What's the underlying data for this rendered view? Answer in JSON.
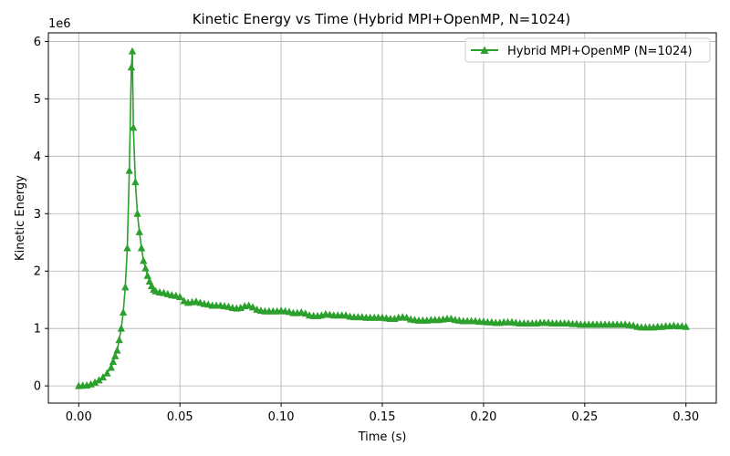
{
  "chart_data": {
    "type": "line",
    "title": "Kinetic Energy vs Time (Hybrid MPI+OpenMP, N=1024)",
    "xlabel": "Time (s)",
    "ylabel": "Kinetic Energy",
    "y_scale_label": "1e6",
    "xlim": [
      -0.015,
      0.315
    ],
    "ylim": [
      -0.3,
      6.15
    ],
    "x_ticks": [
      0.0,
      0.05,
      0.1,
      0.15,
      0.2,
      0.25,
      0.3
    ],
    "x_tick_labels": [
      "0.00",
      "0.05",
      "0.10",
      "0.15",
      "0.20",
      "0.25",
      "0.30"
    ],
    "y_ticks": [
      0,
      1,
      2,
      3,
      4,
      5,
      6
    ],
    "y_tick_labels": [
      "0",
      "1",
      "2",
      "3",
      "4",
      "5",
      "6"
    ],
    "grid": true,
    "legend_position": "top-right",
    "color": "#2ca02c",
    "marker": "triangle-up",
    "series": [
      {
        "name": "Hybrid MPI+OpenMP (N=1024)",
        "points": [
          [
            0.0,
            0.0
          ],
          [
            0.002,
            0.005
          ],
          [
            0.004,
            0.01
          ],
          [
            0.006,
            0.03
          ],
          [
            0.008,
            0.06
          ],
          [
            0.01,
            0.1
          ],
          [
            0.012,
            0.15
          ],
          [
            0.014,
            0.22
          ],
          [
            0.016,
            0.32
          ],
          [
            0.017,
            0.42
          ],
          [
            0.018,
            0.52
          ],
          [
            0.019,
            0.62
          ],
          [
            0.02,
            0.8
          ],
          [
            0.021,
            1.0
          ],
          [
            0.022,
            1.28
          ],
          [
            0.023,
            1.72
          ],
          [
            0.024,
            2.4
          ],
          [
            0.025,
            3.75
          ],
          [
            0.026,
            5.55
          ],
          [
            0.0265,
            5.83
          ],
          [
            0.027,
            4.5
          ],
          [
            0.028,
            3.55
          ],
          [
            0.029,
            3.0
          ],
          [
            0.03,
            2.68
          ],
          [
            0.031,
            2.4
          ],
          [
            0.032,
            2.18
          ],
          [
            0.033,
            2.05
          ],
          [
            0.034,
            1.92
          ],
          [
            0.035,
            1.82
          ],
          [
            0.036,
            1.74
          ],
          [
            0.037,
            1.68
          ],
          [
            0.038,
            1.65
          ],
          [
            0.04,
            1.63
          ],
          [
            0.042,
            1.62
          ],
          [
            0.044,
            1.6
          ],
          [
            0.046,
            1.58
          ],
          [
            0.048,
            1.57
          ],
          [
            0.05,
            1.55
          ],
          [
            0.052,
            1.48
          ],
          [
            0.054,
            1.45
          ],
          [
            0.056,
            1.46
          ],
          [
            0.058,
            1.47
          ],
          [
            0.06,
            1.45
          ],
          [
            0.062,
            1.43
          ],
          [
            0.064,
            1.42
          ],
          [
            0.066,
            1.4
          ],
          [
            0.068,
            1.4
          ],
          [
            0.07,
            1.4
          ],
          [
            0.072,
            1.39
          ],
          [
            0.074,
            1.38
          ],
          [
            0.076,
            1.36
          ],
          [
            0.078,
            1.35
          ],
          [
            0.08,
            1.36
          ],
          [
            0.082,
            1.39
          ],
          [
            0.084,
            1.4
          ],
          [
            0.086,
            1.37
          ],
          [
            0.088,
            1.33
          ],
          [
            0.09,
            1.31
          ],
          [
            0.092,
            1.3
          ],
          [
            0.094,
            1.3
          ],
          [
            0.096,
            1.3
          ],
          [
            0.098,
            1.3
          ],
          [
            0.1,
            1.31
          ],
          [
            0.102,
            1.3
          ],
          [
            0.104,
            1.29
          ],
          [
            0.106,
            1.27
          ],
          [
            0.108,
            1.27
          ],
          [
            0.11,
            1.28
          ],
          [
            0.112,
            1.26
          ],
          [
            0.114,
            1.23
          ],
          [
            0.116,
            1.22
          ],
          [
            0.118,
            1.22
          ],
          [
            0.12,
            1.23
          ],
          [
            0.122,
            1.25
          ],
          [
            0.124,
            1.24
          ],
          [
            0.126,
            1.23
          ],
          [
            0.128,
            1.23
          ],
          [
            0.13,
            1.23
          ],
          [
            0.132,
            1.23
          ],
          [
            0.134,
            1.21
          ],
          [
            0.136,
            1.2
          ],
          [
            0.138,
            1.2
          ],
          [
            0.14,
            1.2
          ],
          [
            0.142,
            1.19
          ],
          [
            0.144,
            1.19
          ],
          [
            0.146,
            1.19
          ],
          [
            0.148,
            1.19
          ],
          [
            0.15,
            1.19
          ],
          [
            0.152,
            1.18
          ],
          [
            0.154,
            1.17
          ],
          [
            0.156,
            1.17
          ],
          [
            0.158,
            1.19
          ],
          [
            0.16,
            1.2
          ],
          [
            0.162,
            1.19
          ],
          [
            0.164,
            1.16
          ],
          [
            0.166,
            1.15
          ],
          [
            0.168,
            1.14
          ],
          [
            0.17,
            1.14
          ],
          [
            0.172,
            1.14
          ],
          [
            0.174,
            1.15
          ],
          [
            0.176,
            1.15
          ],
          [
            0.178,
            1.15
          ],
          [
            0.18,
            1.16
          ],
          [
            0.182,
            1.17
          ],
          [
            0.184,
            1.17
          ],
          [
            0.186,
            1.15
          ],
          [
            0.188,
            1.14
          ],
          [
            0.19,
            1.13
          ],
          [
            0.192,
            1.13
          ],
          [
            0.194,
            1.13
          ],
          [
            0.196,
            1.13
          ],
          [
            0.198,
            1.12
          ],
          [
            0.2,
            1.12
          ],
          [
            0.202,
            1.11
          ],
          [
            0.204,
            1.11
          ],
          [
            0.206,
            1.1
          ],
          [
            0.208,
            1.1
          ],
          [
            0.21,
            1.11
          ],
          [
            0.212,
            1.11
          ],
          [
            0.214,
            1.11
          ],
          [
            0.216,
            1.1
          ],
          [
            0.218,
            1.09
          ],
          [
            0.22,
            1.09
          ],
          [
            0.222,
            1.09
          ],
          [
            0.224,
            1.09
          ],
          [
            0.226,
            1.09
          ],
          [
            0.228,
            1.1
          ],
          [
            0.23,
            1.1
          ],
          [
            0.232,
            1.1
          ],
          [
            0.234,
            1.09
          ],
          [
            0.236,
            1.09
          ],
          [
            0.238,
            1.09
          ],
          [
            0.24,
            1.09
          ],
          [
            0.242,
            1.09
          ],
          [
            0.244,
            1.08
          ],
          [
            0.246,
            1.08
          ],
          [
            0.248,
            1.07
          ],
          [
            0.25,
            1.07
          ],
          [
            0.252,
            1.07
          ],
          [
            0.254,
            1.07
          ],
          [
            0.256,
            1.07
          ],
          [
            0.258,
            1.07
          ],
          [
            0.26,
            1.07
          ],
          [
            0.262,
            1.07
          ],
          [
            0.264,
            1.07
          ],
          [
            0.266,
            1.07
          ],
          [
            0.268,
            1.07
          ],
          [
            0.27,
            1.07
          ],
          [
            0.272,
            1.06
          ],
          [
            0.274,
            1.05
          ],
          [
            0.276,
            1.03
          ],
          [
            0.278,
            1.02
          ],
          [
            0.28,
            1.02
          ],
          [
            0.282,
            1.02
          ],
          [
            0.284,
            1.02
          ],
          [
            0.286,
            1.03
          ],
          [
            0.288,
            1.03
          ],
          [
            0.29,
            1.04
          ],
          [
            0.292,
            1.04
          ],
          [
            0.294,
            1.05
          ],
          [
            0.296,
            1.04
          ],
          [
            0.298,
            1.04
          ],
          [
            0.3,
            1.03
          ]
        ]
      }
    ]
  }
}
